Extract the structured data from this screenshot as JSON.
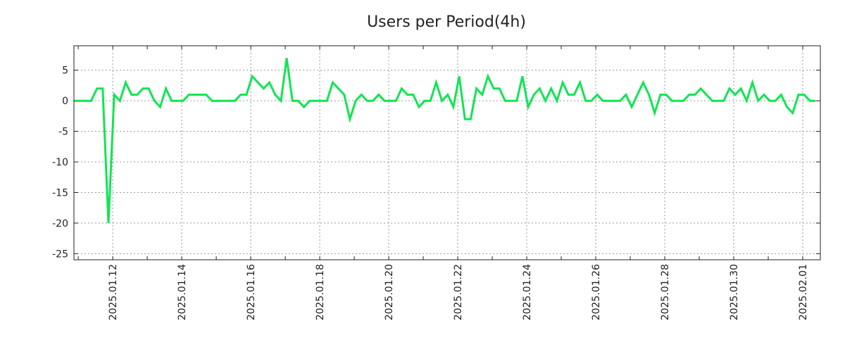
{
  "chart_data": {
    "type": "line",
    "title": "Users per Period(4h)",
    "xlabel": "",
    "ylabel": "",
    "x_start": "2025-01-10T21:00:00Z",
    "x_step_hours": 4,
    "xlim": [
      "2025-01-10T21:00:00Z",
      "2025-02-01T12:15:00Z"
    ],
    "ylim": [
      -26,
      9
    ],
    "grid": true,
    "yticks": [
      5,
      0,
      -5,
      -10,
      -15,
      -20,
      -25
    ],
    "xticks": [
      {
        "date": "2025-01-12",
        "label": "2025.01.12"
      },
      {
        "date": "2025-01-14",
        "label": "2025.01.14"
      },
      {
        "date": "2025-01-16",
        "label": "2025.01.16"
      },
      {
        "date": "2025-01-18",
        "label": "2025.01.18"
      },
      {
        "date": "2025-01-20",
        "label": "2025.01.20"
      },
      {
        "date": "2025-01-22",
        "label": "2025.01.22"
      },
      {
        "date": "2025-01-24",
        "label": "2025.01.24"
      },
      {
        "date": "2025-01-26",
        "label": "2025.01.26"
      },
      {
        "date": "2025-01-28",
        "label": "2025.01.28"
      },
      {
        "date": "2025-01-30",
        "label": "2025.01.30"
      },
      {
        "date": "2025-02-01",
        "label": "2025.02.01"
      }
    ],
    "series": [
      {
        "name": "Users",
        "color": "#11e552",
        "values": [
          0,
          0,
          0,
          0,
          2,
          2,
          -20,
          1,
          0,
          3,
          1,
          1,
          2,
          2,
          0,
          -1,
          2,
          0,
          0,
          0,
          1,
          1,
          1,
          1,
          0,
          0,
          0,
          0,
          0,
          1,
          1,
          4,
          3,
          2,
          3,
          1,
          0,
          7,
          0,
          0,
          -1,
          0,
          0,
          0,
          0,
          3,
          2,
          1,
          -3,
          0,
          1,
          0,
          0,
          1,
          0,
          0,
          0,
          2,
          1,
          1,
          -1,
          0,
          0,
          3,
          0,
          1,
          -1,
          4,
          -3,
          -3,
          2,
          1,
          4,
          2,
          2,
          0,
          0,
          0,
          4,
          -1,
          1,
          2,
          0,
          2,
          0,
          3,
          1,
          1,
          3,
          0,
          0,
          1,
          0,
          0,
          0,
          0,
          1,
          -1,
          1,
          3,
          1,
          -2,
          1,
          1,
          0,
          0,
          0,
          1,
          1,
          2,
          1,
          0,
          0,
          0,
          2,
          1,
          2,
          0,
          3,
          0,
          1,
          0,
          0,
          1,
          -1,
          -2,
          1,
          1,
          0,
          0
        ]
      }
    ]
  }
}
